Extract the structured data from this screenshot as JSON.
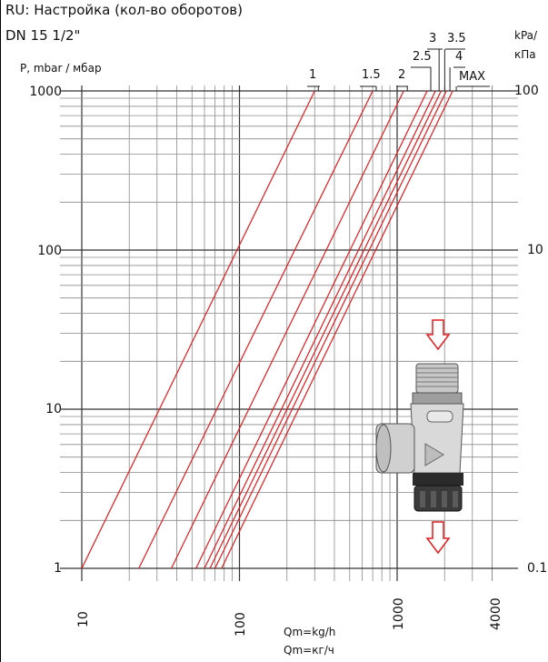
{
  "title_line1": "RU: Настройка (кол-во оборотов)",
  "title_line2": "DN 15 1/2\"",
  "colors": {
    "curve": "#e41a1c",
    "grid": "#8a8a8a",
    "arrow": "#e41a1c"
  },
  "chart_data": {
    "type": "line",
    "scale": "log-log",
    "xlabel_lines": [
      "Qm=kg/h",
      "Qm=кг/ч"
    ],
    "ylabel": "P, mbar / мбар",
    "ylabel_right_lines": [
      "kPa/",
      "кПа"
    ],
    "xlim": [
      10,
      4000
    ],
    "ylim": [
      1,
      1000
    ],
    "x_ticks": [
      "10",
      "100",
      "1000",
      "4000"
    ],
    "y_ticks": [
      "1",
      "10",
      "100",
      "1000"
    ],
    "y_right_ticks": [
      "0.1",
      "10",
      "100"
    ],
    "grid": true,
    "series": [
      {
        "name": "1",
        "x": [
          10,
          300
        ],
        "y": [
          1,
          1000
        ]
      },
      {
        "name": "1.5",
        "x": [
          23,
          700
        ],
        "y": [
          1,
          1000
        ]
      },
      {
        "name": "2",
        "x": [
          37,
          1100
        ],
        "y": [
          1,
          1000
        ]
      },
      {
        "name": "2.5",
        "x": [
          53,
          1550
        ],
        "y": [
          1,
          1000
        ]
      },
      {
        "name": "3",
        "x": [
          60,
          1750
        ],
        "y": [
          1,
          1000
        ]
      },
      {
        "name": "3.5",
        "x": [
          65,
          1900
        ],
        "y": [
          1,
          1000
        ]
      },
      {
        "name": "4",
        "x": [
          70,
          2050
        ],
        "y": [
          1,
          1000
        ]
      },
      {
        "name": "MAX",
        "x": [
          77,
          2250
        ],
        "y": [
          1,
          1000
        ]
      }
    ]
  }
}
